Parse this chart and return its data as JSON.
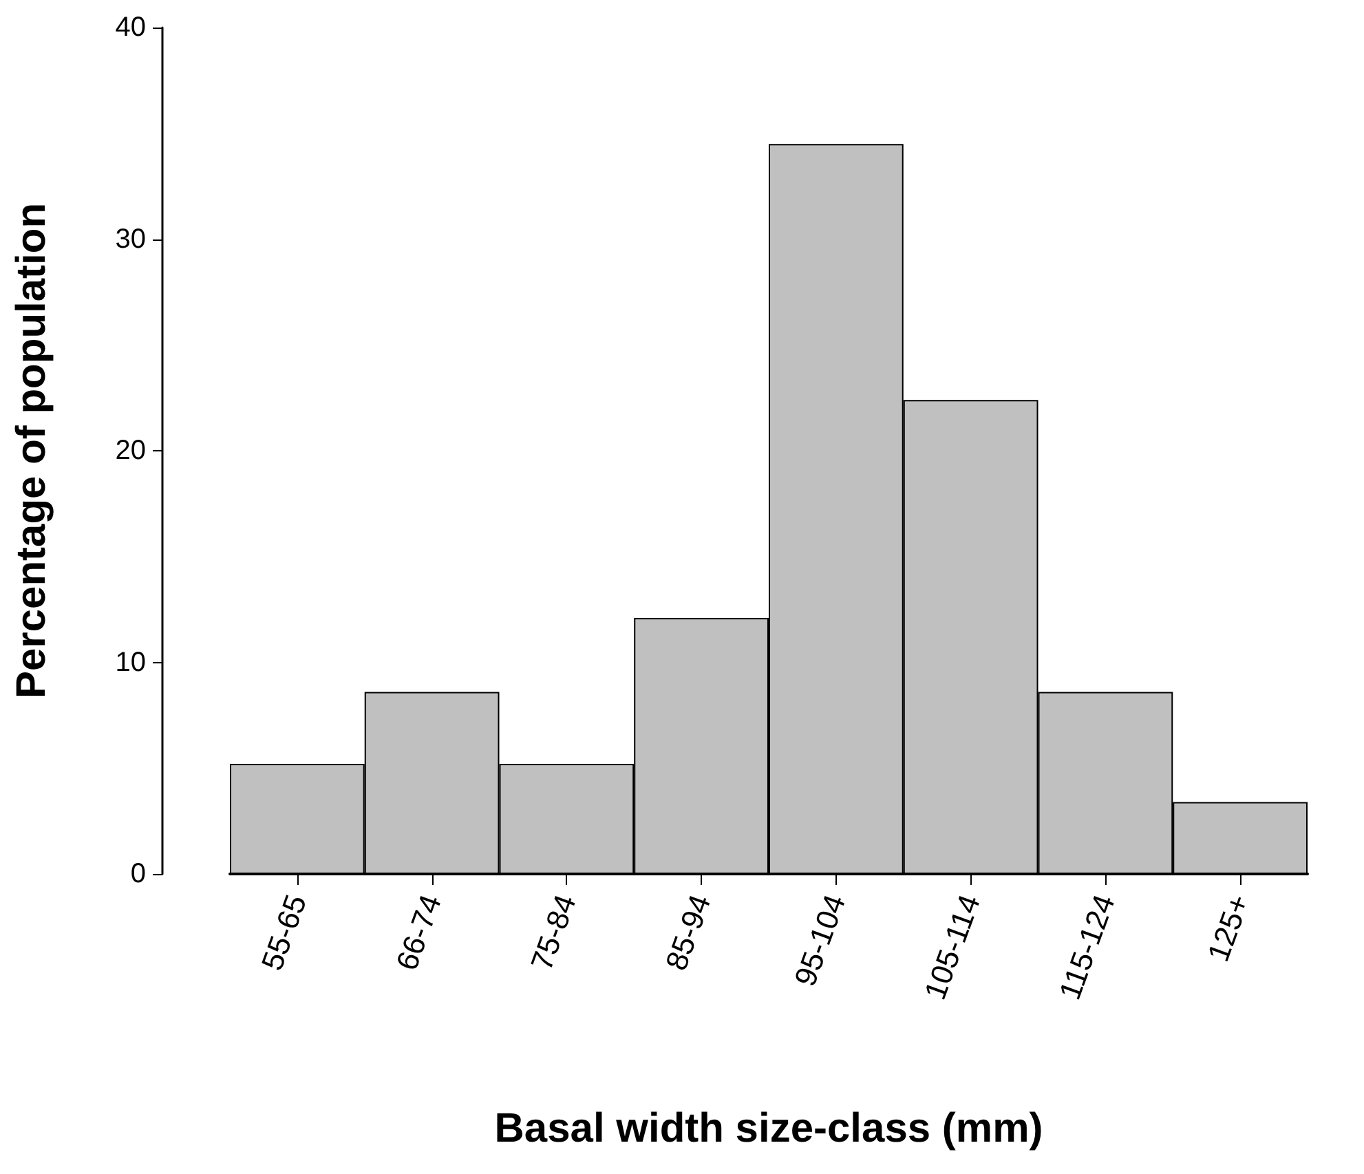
{
  "chart_data": {
    "type": "bar",
    "xlabel": "Basal width size-class (mm)",
    "ylabel": "Percentage of population",
    "categories": [
      "55-65",
      "66-74",
      "75-84",
      "85-94",
      "95-104",
      "105-114",
      "115-124",
      "125+"
    ],
    "values": [
      5.2,
      8.6,
      5.2,
      12.1,
      34.5,
      22.4,
      8.6,
      3.4
    ],
    "color": "#c0c0c0",
    "ylim": [
      0,
      40
    ],
    "yticks": [
      0,
      10,
      20,
      30,
      40
    ]
  }
}
